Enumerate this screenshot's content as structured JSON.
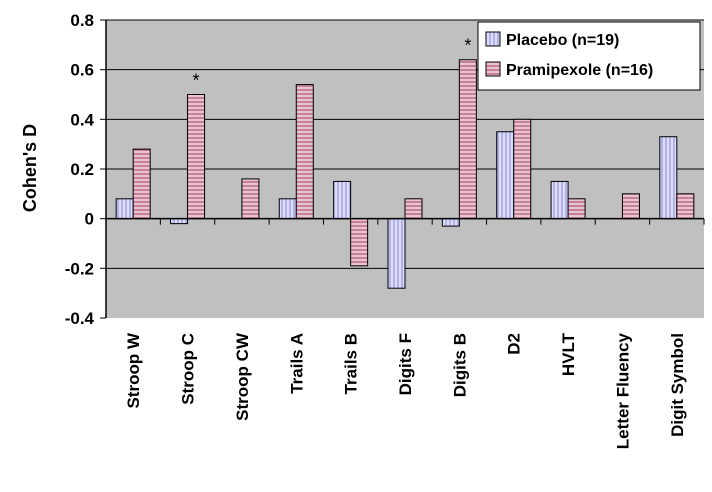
{
  "chart_data": {
    "type": "bar",
    "title": "",
    "xlabel": "",
    "ylabel": "Cohen's D",
    "ylim": [
      -0.4,
      0.8
    ],
    "yticks": [
      "0.8",
      "0.6",
      "0.4",
      "0.2",
      "0",
      "-0.2",
      "-0.4"
    ],
    "ytick_values": [
      0.8,
      0.6,
      0.4,
      0.2,
      0,
      -0.2,
      -0.4
    ],
    "grid": true,
    "legend_position": "top-right",
    "categories": [
      "Stroop W",
      "Stroop C",
      "Stroop CW",
      "Trails A",
      "Trails B",
      "Digits F",
      "Digits B",
      "D2",
      "HVLT",
      "Letter Fluency",
      "Digit Symbol"
    ],
    "series": [
      {
        "name": "Placebo (n=19)",
        "values": [
          0.08,
          -0.02,
          0,
          0.08,
          0.15,
          -0.28,
          -0.03,
          0.35,
          0.15,
          0,
          0.33
        ],
        "color": "#ccccff"
      },
      {
        "name": "Pramipexole (n=16)",
        "values": [
          0.28,
          0.5,
          0.16,
          0.54,
          -0.19,
          0.08,
          0.64,
          0.4,
          0.08,
          0.1,
          0.1
        ],
        "color": "#cc99aa"
      }
    ],
    "annotations": [
      {
        "text": "*",
        "category": "Stroop C"
      },
      {
        "text": "*",
        "category": "Digits B"
      }
    ],
    "colors": {
      "plot_background": "#c0c0c0",
      "placebo_fill": "#ccccff",
      "pramipexole_fill": "#cc99aa"
    }
  }
}
